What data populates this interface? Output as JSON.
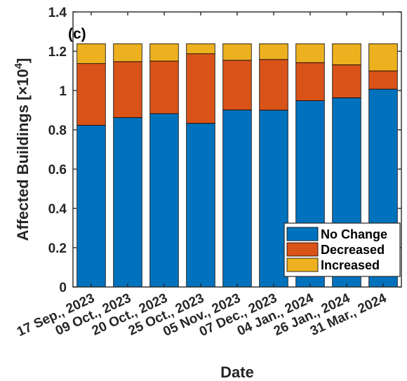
{
  "chart_data": {
    "type": "bar",
    "stacked": true,
    "panel_label": "(c)",
    "xlabel": "Date",
    "ylabel": "Affected Buildings [",
    "ylabel_multiplier": "×10",
    "ylabel_exponent": "4",
    "ylabel_close": "]",
    "ylim": [
      0,
      1.4
    ],
    "yticks": [
      0,
      0.2,
      0.4,
      0.6,
      0.8,
      1,
      1.2,
      1.4
    ],
    "ytick_labels": [
      "0",
      "0.2",
      "0.4",
      "0.6",
      "0.8",
      "1",
      "1.2",
      "1.4"
    ],
    "categories": [
      "17 Sep., 2023",
      "09 Oct., 2023",
      "20 Oct., 2023",
      "25 Oct., 2023",
      "05 Nov., 2023",
      "07 Dec., 2023",
      "04 Jan., 2024",
      "26 Jan., 2024",
      "31 Mar., 2024"
    ],
    "series": [
      {
        "name": "No Change",
        "color": "#0072BD",
        "values": [
          0.823,
          0.862,
          0.882,
          0.833,
          0.901,
          0.9,
          0.948,
          0.963,
          1.007
        ]
      },
      {
        "name": "Decreased",
        "color": "#D95319",
        "values": [
          0.314,
          0.285,
          0.268,
          0.354,
          0.253,
          0.258,
          0.194,
          0.168,
          0.093
        ]
      },
      {
        "name": "Increased",
        "color": "#EDB120",
        "values": [
          0.101,
          0.091,
          0.088,
          0.051,
          0.084,
          0.08,
          0.096,
          0.107,
          0.138
        ]
      }
    ],
    "legend_position": "bottom-right",
    "grid": false
  }
}
